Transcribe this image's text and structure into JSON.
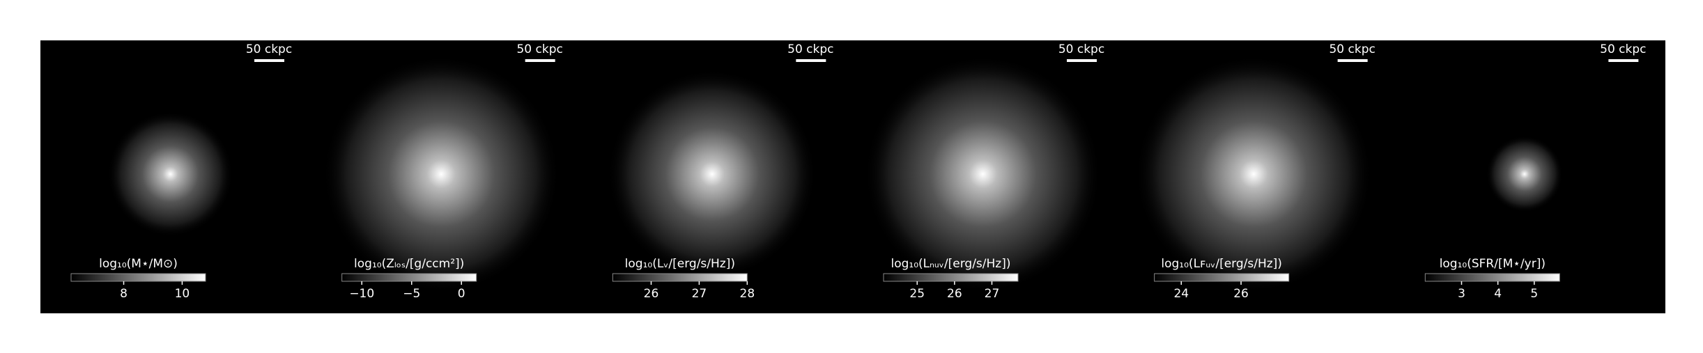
{
  "chart_data": [
    {
      "type": "image",
      "scale_label": "50 ckpc",
      "colorbar_label": "log₁₀(M⋆/M⊙)",
      "clim": [
        6.2,
        10.8
      ],
      "cticks": [
        8,
        10
      ]
    },
    {
      "type": "image",
      "scale_label": "50 ckpc",
      "colorbar_label": "log₁₀(Zₗₒₛ/[g/ccm²])",
      "clim": [
        -12,
        1.5
      ],
      "cticks": [
        {
          "value": -10,
          "label": "−10"
        },
        {
          "value": -5,
          "label": "−5"
        },
        0
      ]
    },
    {
      "type": "image",
      "scale_label": "50 ckpc",
      "colorbar_label": "log₁₀(Lᵥ/[erg/s/Hz])",
      "clim": [
        25.2,
        28
      ],
      "cticks": [
        26,
        27,
        28
      ]
    },
    {
      "type": "image",
      "scale_label": "50 ckpc",
      "colorbar_label": "log₁₀(Lₙᵤᵥ/[erg/s/Hz])",
      "clim": [
        24.1,
        27.7
      ],
      "cticks": [
        25,
        26,
        27
      ]
    },
    {
      "type": "image",
      "scale_label": "50 ckpc",
      "colorbar_label": "log₁₀(Lꜰᵤᵥ/[erg/s/Hz])",
      "clim": [
        23.1,
        27.6
      ],
      "cticks": [
        24,
        26
      ]
    },
    {
      "type": "image",
      "scale_label": "50 ckpc",
      "colorbar_label": "log₁₀(SFR/[M⋆/yr])",
      "clim": [
        2,
        5.7
      ],
      "cticks": [
        3,
        4,
        5
      ]
    }
  ]
}
